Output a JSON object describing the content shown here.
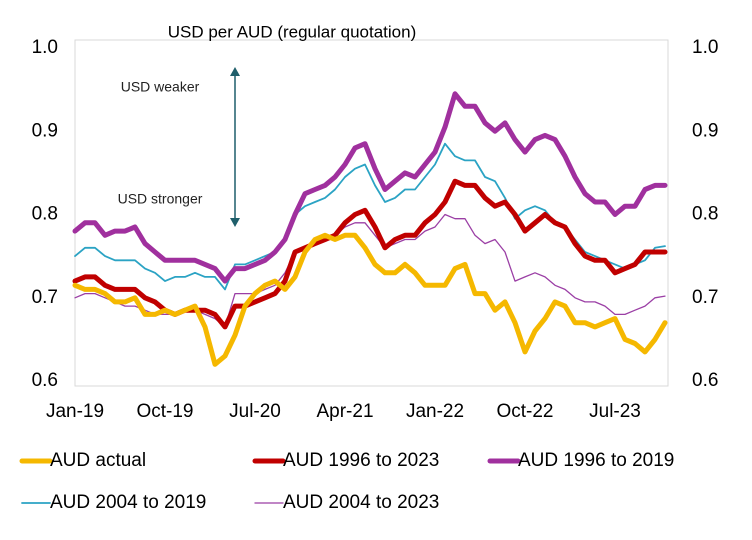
{
  "chart_data": {
    "type": "line",
    "title": "USD per AUD (regular quotation)",
    "annotations": [
      "USD weaker",
      "USD stronger"
    ],
    "categories": [
      "Jan-19",
      null,
      null,
      null,
      null,
      null,
      null,
      null,
      null,
      "Oct-19",
      null,
      null,
      null,
      null,
      null,
      null,
      null,
      null,
      "Jul-20",
      null,
      null,
      null,
      null,
      null,
      null,
      null,
      null,
      "Apr-21",
      null,
      null,
      null,
      null,
      null,
      null,
      null,
      null,
      "Jan-22",
      null,
      null,
      null,
      null,
      null,
      null,
      null,
      null,
      "Oct-22",
      null,
      null,
      null,
      null,
      null,
      null,
      null,
      null,
      "Jul-23",
      null,
      null,
      null,
      null,
      null
    ],
    "ylim": [
      0.6,
      1.0
    ],
    "yticks": [
      0.6,
      0.7,
      0.8,
      0.9,
      {
        "value": 1.0,
        "label": "1.0"
      }
    ],
    "y2lim": [
      0.6,
      1.0
    ],
    "y2ticks": [
      0.6,
      0.7,
      0.8,
      0.9,
      {
        "value": 1.0,
        "label": "1.0"
      }
    ],
    "series": [
      {
        "name": "AUD actual",
        "color": "#f5b800",
        "line_width": 5,
        "values": [
          0.715,
          0.71,
          0.71,
          0.705,
          0.695,
          0.695,
          0.7,
          0.68,
          0.68,
          0.685,
          0.68,
          0.685,
          0.69,
          0.665,
          0.62,
          0.63,
          0.655,
          0.69,
          0.705,
          0.715,
          0.72,
          0.71,
          0.725,
          0.755,
          0.77,
          0.775,
          0.77,
          0.775,
          0.775,
          0.76,
          0.74,
          0.73,
          0.73,
          0.74,
          0.73,
          0.715,
          0.715,
          0.715,
          0.735,
          0.74,
          0.705,
          0.705,
          0.685,
          0.695,
          0.67,
          0.635,
          0.66,
          0.675,
          0.695,
          0.69,
          0.67,
          0.67,
          0.665,
          0.67,
          0.675,
          0.65,
          0.645,
          0.635,
          0.65,
          0.67
        ]
      },
      {
        "name": "AUD 1996 to 2023",
        "color": "#c00000",
        "line_width": 5,
        "values": [
          0.72,
          0.725,
          0.725,
          0.715,
          0.71,
          0.71,
          0.71,
          0.7,
          0.695,
          0.685,
          0.68,
          0.685,
          0.685,
          0.685,
          0.68,
          0.665,
          0.69,
          0.69,
          0.695,
          0.7,
          0.705,
          0.72,
          0.755,
          0.76,
          0.765,
          0.77,
          0.775,
          0.79,
          0.8,
          0.805,
          0.785,
          0.76,
          0.77,
          0.775,
          0.775,
          0.79,
          0.8,
          0.815,
          0.84,
          0.835,
          0.835,
          0.82,
          0.81,
          0.815,
          0.8,
          0.78,
          0.79,
          0.8,
          0.79,
          0.785,
          0.765,
          0.75,
          0.745,
          0.745,
          0.73,
          0.735,
          0.74,
          0.755,
          0.755,
          0.755
        ]
      },
      {
        "name": "AUD 1996 to 2019",
        "color": "#a0309e",
        "line_width": 5,
        "values": [
          0.78,
          0.79,
          0.79,
          0.775,
          0.78,
          0.78,
          0.785,
          0.765,
          0.755,
          0.745,
          0.745,
          0.745,
          0.745,
          0.74,
          0.735,
          0.72,
          0.735,
          0.735,
          0.74,
          0.745,
          0.755,
          0.77,
          0.8,
          0.825,
          0.83,
          0.835,
          0.845,
          0.86,
          0.88,
          0.885,
          0.855,
          0.83,
          0.84,
          0.85,
          0.845,
          0.86,
          0.875,
          0.905,
          0.945,
          0.93,
          0.93,
          0.91,
          0.9,
          0.91,
          0.89,
          0.875,
          0.89,
          0.895,
          0.89,
          0.87,
          0.845,
          0.825,
          0.815,
          0.815,
          0.8,
          0.81,
          0.81,
          0.83,
          0.835,
          0.835
        ]
      },
      {
        "name": "AUD 2004 to 2019",
        "color": "#2ba3c4",
        "line_width": 1.8,
        "values": [
          0.75,
          0.76,
          0.76,
          0.75,
          0.745,
          0.745,
          0.745,
          0.735,
          0.73,
          0.72,
          0.725,
          0.725,
          0.73,
          0.725,
          0.725,
          0.71,
          0.74,
          0.74,
          0.745,
          0.75,
          0.755,
          0.77,
          0.8,
          0.81,
          0.815,
          0.82,
          0.83,
          0.845,
          0.855,
          0.86,
          0.835,
          0.815,
          0.82,
          0.83,
          0.83,
          0.845,
          0.86,
          0.885,
          0.87,
          0.865,
          0.865,
          0.845,
          0.84,
          0.82,
          0.795,
          0.805,
          0.81,
          0.805,
          0.79,
          0.785,
          0.77,
          0.755,
          0.75,
          0.745,
          0.74,
          0.735,
          0.74,
          0.745,
          0.76,
          0.762
        ]
      },
      {
        "name": "AUD 2004 to 2023",
        "color": "#9b3fa5",
        "line_width": 1.3,
        "values": [
          0.7,
          0.705,
          0.705,
          0.7,
          0.695,
          0.69,
          0.69,
          0.685,
          0.68,
          0.68,
          0.68,
          0.685,
          0.685,
          0.68,
          0.675,
          0.665,
          0.705,
          0.705,
          0.705,
          0.71,
          0.715,
          0.73,
          0.755,
          0.76,
          0.765,
          0.77,
          0.775,
          0.785,
          0.79,
          0.79,
          0.775,
          0.76,
          0.765,
          0.77,
          0.77,
          0.78,
          0.785,
          0.8,
          0.795,
          0.795,
          0.775,
          0.765,
          0.77,
          0.755,
          0.72,
          0.725,
          0.73,
          0.725,
          0.715,
          0.71,
          0.7,
          0.695,
          0.695,
          0.69,
          0.68,
          0.68,
          0.685,
          0.69,
          0.7,
          0.702
        ]
      }
    ],
    "legend": "bottom"
  }
}
